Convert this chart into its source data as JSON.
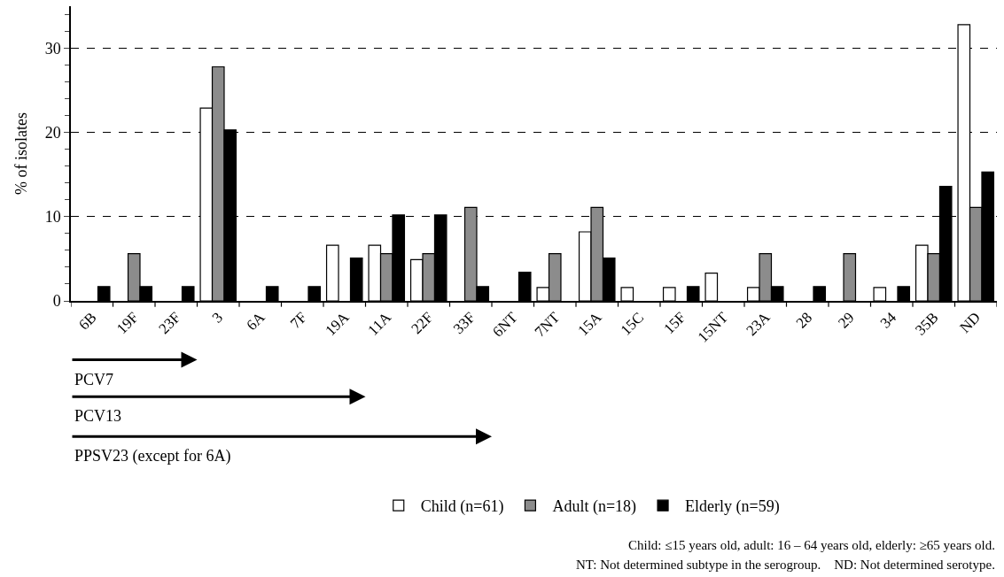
{
  "chart_data": {
    "type": "bar",
    "ylabel": "% of isolates",
    "categories": [
      "6B",
      "19F",
      "23F",
      "3",
      "6A",
      "7F",
      "19A",
      "11A",
      "22F",
      "33F",
      "6NT",
      "7NT",
      "15A",
      "15C",
      "15F",
      "15NT",
      "23A",
      "28",
      "29",
      "34",
      "35B",
      "ND"
    ],
    "series": [
      {
        "name": "Child (n=61)",
        "color": "#ffffff",
        "values": [
          null,
          null,
          null,
          22.9,
          null,
          null,
          6.6,
          6.6,
          4.9,
          null,
          null,
          1.6,
          8.2,
          1.6,
          1.6,
          3.3,
          1.6,
          null,
          null,
          1.6,
          6.6,
          32.8
        ]
      },
      {
        "name": "Adult (n=18)",
        "color": "#8c8c8c",
        "values": [
          null,
          5.6,
          null,
          27.8,
          null,
          null,
          null,
          5.6,
          5.6,
          11.1,
          null,
          5.6,
          11.1,
          null,
          null,
          null,
          5.6,
          null,
          5.6,
          null,
          5.6,
          11.1
        ]
      },
      {
        "name": "Elderly (n=59)",
        "color": "#000000",
        "values": [
          1.7,
          1.7,
          1.7,
          20.3,
          1.7,
          1.7,
          5.1,
          10.2,
          10.2,
          1.7,
          3.4,
          null,
          5.1,
          null,
          1.7,
          null,
          1.7,
          1.7,
          null,
          1.7,
          13.6,
          15.3
        ]
      }
    ],
    "ylim": [
      0,
      35
    ],
    "yticks": [
      0,
      10,
      20,
      30
    ],
    "grid": "y",
    "legend": "bottom",
    "annotations": [
      "PCV7",
      "PCV13",
      "PPSV23 (except for 6A)",
      "Child: ≤15 years old, adult: 16 – 64 years old, elderly: ≥65 years old.",
      "NT: Not determined subtype in the serogroup.    ND: Not determined serotype."
    ]
  }
}
